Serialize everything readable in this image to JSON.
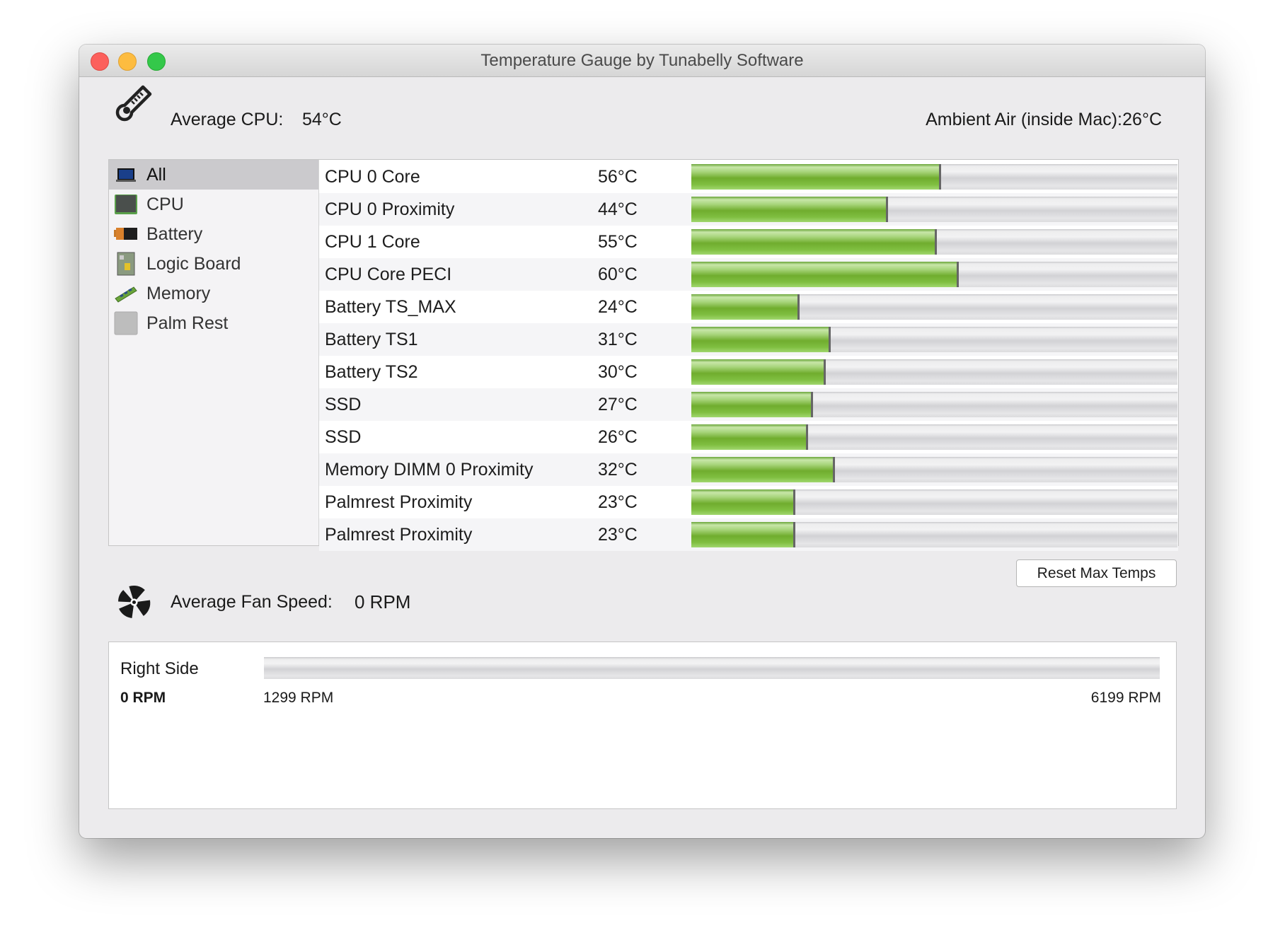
{
  "window": {
    "title": "Temperature Gauge by Tunabelly Software"
  },
  "header": {
    "avg_cpu_label": "Average CPU:",
    "avg_cpu_value": "54°C",
    "ambient_label": "Ambient Air (inside Mac):",
    "ambient_value": "26°C"
  },
  "sidebar": {
    "items": [
      {
        "label": "All",
        "icon": "laptop-icon",
        "selected": true
      },
      {
        "label": "CPU",
        "icon": "cpu-chip-icon",
        "selected": false
      },
      {
        "label": "Battery",
        "icon": "battery-icon",
        "selected": false
      },
      {
        "label": "Logic Board",
        "icon": "logic-board-icon",
        "selected": false
      },
      {
        "label": "Memory",
        "icon": "memory-module-icon",
        "selected": false
      },
      {
        "label": "Palm Rest",
        "icon": "palm-rest-icon",
        "selected": false
      }
    ]
  },
  "sensors": {
    "scale_max_c": 110,
    "rows": [
      {
        "name": "CPU 0 Core",
        "temp": "56°C",
        "value": 56
      },
      {
        "name": "CPU 0 Proximity",
        "temp": "44°C",
        "value": 44
      },
      {
        "name": "CPU 1 Core",
        "temp": "55°C",
        "value": 55
      },
      {
        "name": "CPU Core PECI",
        "temp": "60°C",
        "value": 60
      },
      {
        "name": "Battery TS_MAX",
        "temp": "24°C",
        "value": 24
      },
      {
        "name": "Battery TS1",
        "temp": "31°C",
        "value": 31
      },
      {
        "name": "Battery TS2",
        "temp": "30°C",
        "value": 30
      },
      {
        "name": "SSD",
        "temp": "27°C",
        "value": 27
      },
      {
        "name": "SSD",
        "temp": "26°C",
        "value": 26
      },
      {
        "name": "Memory DIMM 0 Proximity",
        "temp": "32°C",
        "value": 32
      },
      {
        "name": "Palmrest Proximity",
        "temp": "23°C",
        "value": 23
      },
      {
        "name": "Palmrest Proximity",
        "temp": "23°C",
        "value": 23
      }
    ]
  },
  "reset_button": "Reset Max Temps",
  "fan": {
    "avg_label": "Average Fan Speed:",
    "avg_value": "0 RPM",
    "fans": [
      {
        "name": "Right Side",
        "current": "0 RPM",
        "min": "1299 RPM",
        "max": "6199 RPM",
        "fill_fraction": 0
      }
    ]
  },
  "colors": {
    "bar_fill": "#7ab83d",
    "bar_track": "#dcdcde",
    "selection": "#cbcacd"
  }
}
